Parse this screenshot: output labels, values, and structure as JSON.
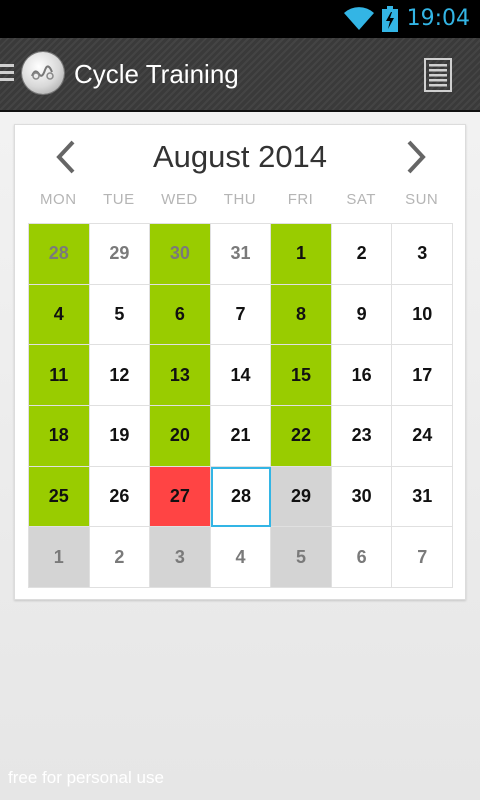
{
  "status_bar": {
    "time": "19:04",
    "wifi_icon": "wifi-icon",
    "battery_icon": "battery-charging-icon",
    "accent_color": "#33b5e5"
  },
  "action_bar": {
    "title": "Cycle Training",
    "menu_icon": "hamburger-icon",
    "logo_icon": "app-logo-icon",
    "overflow_icon": "list-icon"
  },
  "calendar": {
    "month_title": "August 2014",
    "prev_icon": "chevron-left-icon",
    "next_icon": "chevron-right-icon",
    "weekdays": [
      "MON",
      "TUE",
      "WED",
      "THU",
      "FRI",
      "SAT",
      "SUN"
    ],
    "colors": {
      "green": "#99cc00",
      "red": "#ff4444",
      "gray": "#d4d4d4",
      "today_border": "#33b5e5"
    },
    "days": [
      {
        "label": "28",
        "other_month": true,
        "state": "green"
      },
      {
        "label": "29",
        "other_month": true,
        "state": "none"
      },
      {
        "label": "30",
        "other_month": true,
        "state": "green"
      },
      {
        "label": "31",
        "other_month": true,
        "state": "none"
      },
      {
        "label": "1",
        "other_month": false,
        "state": "green"
      },
      {
        "label": "2",
        "other_month": false,
        "state": "none"
      },
      {
        "label": "3",
        "other_month": false,
        "state": "none"
      },
      {
        "label": "4",
        "other_month": false,
        "state": "green"
      },
      {
        "label": "5",
        "other_month": false,
        "state": "none"
      },
      {
        "label": "6",
        "other_month": false,
        "state": "green"
      },
      {
        "label": "7",
        "other_month": false,
        "state": "none"
      },
      {
        "label": "8",
        "other_month": false,
        "state": "green"
      },
      {
        "label": "9",
        "other_month": false,
        "state": "none"
      },
      {
        "label": "10",
        "other_month": false,
        "state": "none"
      },
      {
        "label": "11",
        "other_month": false,
        "state": "green"
      },
      {
        "label": "12",
        "other_month": false,
        "state": "none"
      },
      {
        "label": "13",
        "other_month": false,
        "state": "green"
      },
      {
        "label": "14",
        "other_month": false,
        "state": "none"
      },
      {
        "label": "15",
        "other_month": false,
        "state": "green"
      },
      {
        "label": "16",
        "other_month": false,
        "state": "none"
      },
      {
        "label": "17",
        "other_month": false,
        "state": "none"
      },
      {
        "label": "18",
        "other_month": false,
        "state": "green"
      },
      {
        "label": "19",
        "other_month": false,
        "state": "none"
      },
      {
        "label": "20",
        "other_month": false,
        "state": "green"
      },
      {
        "label": "21",
        "other_month": false,
        "state": "none"
      },
      {
        "label": "22",
        "other_month": false,
        "state": "green"
      },
      {
        "label": "23",
        "other_month": false,
        "state": "none"
      },
      {
        "label": "24",
        "other_month": false,
        "state": "none"
      },
      {
        "label": "25",
        "other_month": false,
        "state": "green"
      },
      {
        "label": "26",
        "other_month": false,
        "state": "none"
      },
      {
        "label": "27",
        "other_month": false,
        "state": "red"
      },
      {
        "label": "28",
        "other_month": false,
        "state": "today"
      },
      {
        "label": "29",
        "other_month": false,
        "state": "gray"
      },
      {
        "label": "30",
        "other_month": false,
        "state": "none"
      },
      {
        "label": "31",
        "other_month": false,
        "state": "none"
      },
      {
        "label": "1",
        "other_month": true,
        "state": "gray"
      },
      {
        "label": "2",
        "other_month": true,
        "state": "none"
      },
      {
        "label": "3",
        "other_month": true,
        "state": "gray"
      },
      {
        "label": "4",
        "other_month": true,
        "state": "none"
      },
      {
        "label": "5",
        "other_month": true,
        "state": "gray"
      },
      {
        "label": "6",
        "other_month": true,
        "state": "none"
      },
      {
        "label": "7",
        "other_month": true,
        "state": "none"
      }
    ]
  },
  "footer": {
    "text": "free for personal use"
  }
}
